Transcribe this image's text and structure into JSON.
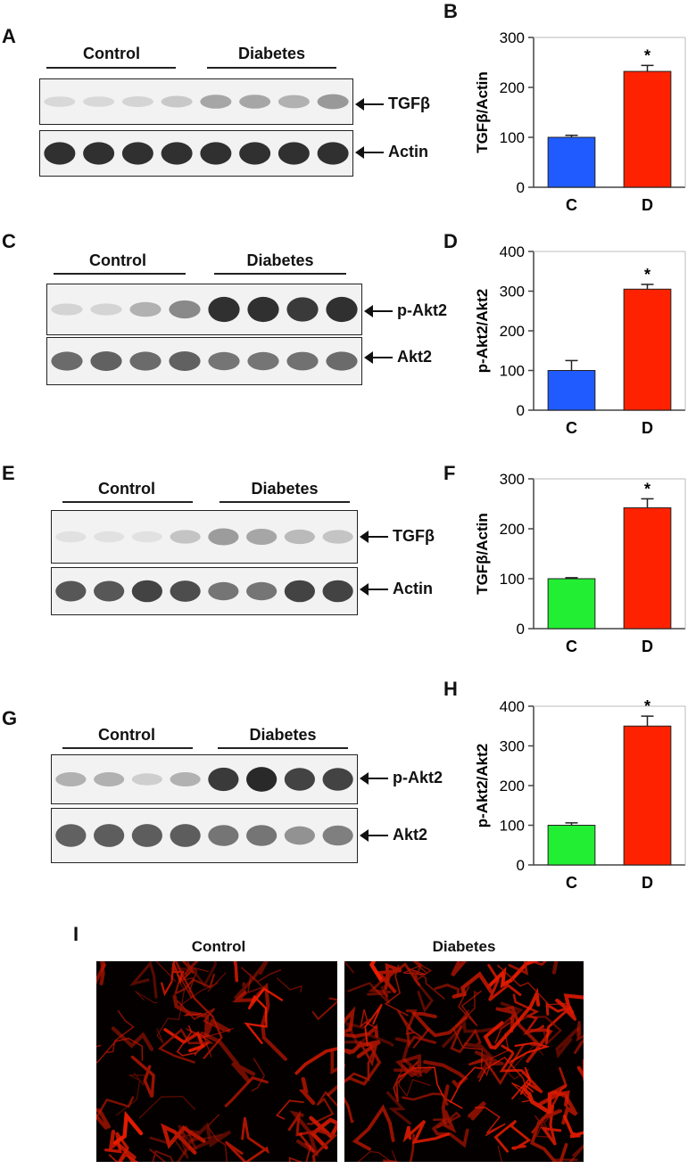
{
  "panel_letters": [
    "A",
    "B",
    "C",
    "D",
    "E",
    "F",
    "G",
    "H",
    "I"
  ],
  "blots": [
    {
      "control_label": "Control",
      "diabetes_label": "Diabetes",
      "top_band": "TGFβ",
      "bottom_band": "Actin",
      "top_intensity": [
        0.1,
        0.1,
        0.12,
        0.18,
        0.35,
        0.35,
        0.3,
        0.42
      ],
      "bottom_intensity": [
        0.95,
        0.95,
        0.95,
        0.95,
        0.95,
        0.95,
        0.95,
        0.95
      ]
    },
    {
      "control_label": "Control",
      "diabetes_label": "Diabetes",
      "top_band": "p-Akt2",
      "bottom_band": "Akt2",
      "top_intensity": [
        0.12,
        0.12,
        0.3,
        0.5,
        0.95,
        0.95,
        0.9,
        0.95
      ],
      "bottom_intensity": [
        0.65,
        0.7,
        0.65,
        0.7,
        0.6,
        0.6,
        0.62,
        0.65
      ]
    },
    {
      "control_label": "Control",
      "diabetes_label": "Diabetes",
      "top_band": "TGFβ",
      "bottom_band": "Actin",
      "top_intensity": [
        0.05,
        0.05,
        0.05,
        0.2,
        0.4,
        0.35,
        0.25,
        0.2
      ],
      "bottom_intensity": [
        0.75,
        0.75,
        0.85,
        0.8,
        0.6,
        0.6,
        0.85,
        0.85
      ]
    },
    {
      "control_label": "Control",
      "diabetes_label": "Diabetes",
      "top_band": "p-Akt2",
      "bottom_band": "Akt2",
      "top_intensity": [
        0.3,
        0.3,
        0.15,
        0.3,
        0.9,
        0.98,
        0.85,
        0.85
      ],
      "bottom_intensity": [
        0.7,
        0.72,
        0.72,
        0.72,
        0.6,
        0.6,
        0.45,
        0.55
      ]
    }
  ],
  "chart_data": [
    {
      "type": "bar",
      "panel": "B",
      "ylabel": "TGFβ/Actin",
      "ylim": [
        0,
        300
      ],
      "yticks": [
        0,
        100,
        200,
        300
      ],
      "categories": [
        "C",
        "D"
      ],
      "values": [
        100,
        232
      ],
      "errors": [
        4,
        12
      ],
      "colors": [
        "#1f5bff",
        "#ff2200"
      ],
      "significance": [
        "",
        "*"
      ]
    },
    {
      "type": "bar",
      "panel": "D",
      "ylabel": "p-Akt2/Akt2",
      "ylim": [
        0,
        400
      ],
      "yticks": [
        0,
        100,
        200,
        300,
        400
      ],
      "categories": [
        "C",
        "D"
      ],
      "values": [
        100,
        305
      ],
      "errors": [
        25,
        12
      ],
      "colors": [
        "#1f5bff",
        "#ff2200"
      ],
      "significance": [
        "",
        "*"
      ]
    },
    {
      "type": "bar",
      "panel": "F",
      "ylabel": "TGFβ/Actin",
      "ylim": [
        0,
        300
      ],
      "yticks": [
        0,
        100,
        200,
        300
      ],
      "categories": [
        "C",
        "D"
      ],
      "values": [
        100,
        242
      ],
      "errors": [
        2,
        18
      ],
      "colors": [
        "#22ee33",
        "#ff2200"
      ],
      "significance": [
        "",
        "*"
      ]
    },
    {
      "type": "bar",
      "panel": "H",
      "ylabel": "p-Akt2/Akt2",
      "ylim": [
        0,
        400
      ],
      "yticks": [
        0,
        100,
        200,
        300,
        400
      ],
      "categories": [
        "C",
        "D"
      ],
      "values": [
        100,
        350
      ],
      "errors": [
        6,
        25
      ],
      "colors": [
        "#22ee33",
        "#ff2200"
      ],
      "significance": [
        "",
        "*"
      ]
    }
  ],
  "images": {
    "left_label": "Control",
    "right_label": "Diabetes"
  }
}
